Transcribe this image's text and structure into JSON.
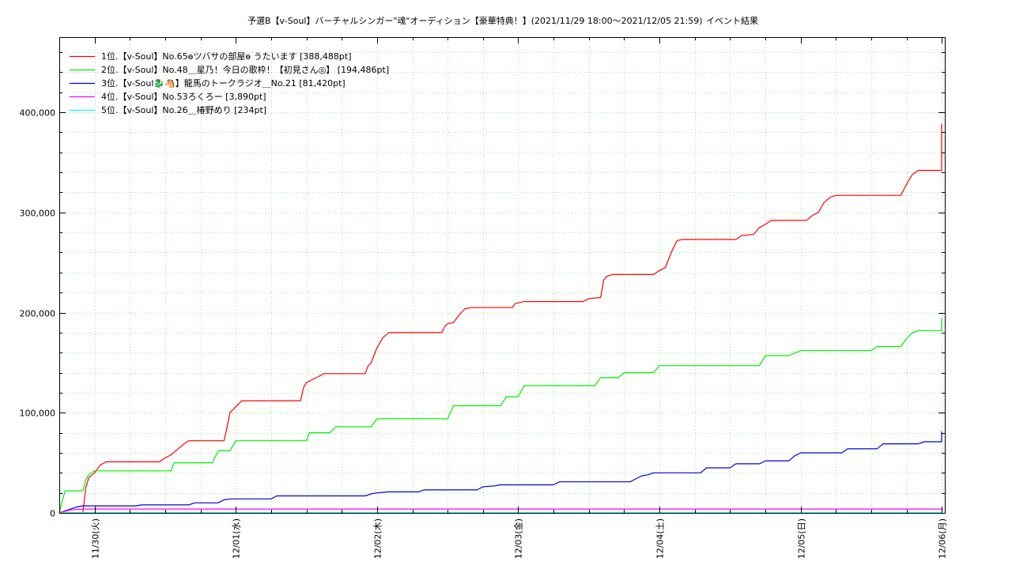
{
  "chart_data": {
    "type": "line",
    "title": "予選B【v-Soul】バーチャルシンガー\"魂\"オーディション【豪華特典！】(2021/11/29 18:00〜2021/12/05 21:59)",
    "subtitle": "イベント結果",
    "x_unit": "hours since 11/29 18:00",
    "xlim": [
      0,
      150.5
    ],
    "ylim": [
      0,
      475000
    ],
    "grid": true,
    "legend_position": "top-left",
    "y_ticks": [
      {
        "value": 0,
        "label": "0"
      },
      {
        "value": 100000,
        "label": "100,000"
      },
      {
        "value": 200000,
        "label": "200,000"
      },
      {
        "value": 300000,
        "label": "300,000"
      },
      {
        "value": 400000,
        "label": "400,000"
      }
    ],
    "x_ticks": [
      {
        "value": 6,
        "label": "11/30(火)"
      },
      {
        "value": 30,
        "label": "12/01(水)"
      },
      {
        "value": 54,
        "label": "12/02(木)"
      },
      {
        "value": 78,
        "label": "12/03(金)"
      },
      {
        "value": 102,
        "label": "12/04(土)"
      },
      {
        "value": 126,
        "label": "12/05(日)"
      },
      {
        "value": 150,
        "label": "12/06(月)"
      }
    ],
    "series": [
      {
        "name": "1位.【v-Soul】No.65ɵツバサの部屋ɵ うたいます [388,488pt]",
        "color": "#ff0000",
        "points": [
          [
            0,
            0
          ],
          [
            4,
            0
          ],
          [
            4.5,
            25000
          ],
          [
            5,
            35000
          ],
          [
            6,
            40000
          ],
          [
            7,
            48000
          ],
          [
            8,
            51000
          ],
          [
            13,
            51000
          ],
          [
            17,
            51000
          ],
          [
            18,
            55000
          ],
          [
            19,
            58000
          ],
          [
            20,
            63000
          ],
          [
            21,
            68000
          ],
          [
            22,
            72000
          ],
          [
            25,
            72000
          ],
          [
            28,
            72000
          ],
          [
            28.5,
            85000
          ],
          [
            29,
            100000
          ],
          [
            30,
            106000
          ],
          [
            31,
            112000
          ],
          [
            35,
            112000
          ],
          [
            41,
            112000
          ],
          [
            41.5,
            125000
          ],
          [
            42,
            130000
          ],
          [
            43,
            133000
          ],
          [
            44,
            136000
          ],
          [
            45,
            139000
          ],
          [
            50,
            139000
          ],
          [
            52,
            139000
          ],
          [
            52.5,
            147000
          ],
          [
            53,
            150000
          ],
          [
            54,
            165000
          ],
          [
            55,
            175000
          ],
          [
            56,
            180000
          ],
          [
            65,
            180000
          ],
          [
            65.5,
            186000
          ],
          [
            66,
            189000
          ],
          [
            67,
            190000
          ],
          [
            68,
            198000
          ],
          [
            69,
            204000
          ],
          [
            70,
            205000
          ],
          [
            77,
            205000
          ],
          [
            77.5,
            209000
          ],
          [
            79,
            211000
          ],
          [
            89,
            211000
          ],
          [
            90,
            214000
          ],
          [
            92,
            215000
          ],
          [
            92.5,
            232000
          ],
          [
            93,
            236000
          ],
          [
            94,
            238000
          ],
          [
            101,
            238000
          ],
          [
            102,
            242000
          ],
          [
            103,
            245000
          ],
          [
            104,
            260000
          ],
          [
            105,
            272000
          ],
          [
            106,
            273000
          ],
          [
            115,
            273000
          ],
          [
            116,
            277000
          ],
          [
            118,
            278000
          ],
          [
            119,
            285000
          ],
          [
            120,
            288000
          ],
          [
            121,
            292000
          ],
          [
            127,
            292000
          ],
          [
            128,
            297000
          ],
          [
            129,
            300000
          ],
          [
            130,
            310000
          ],
          [
            131,
            315000
          ],
          [
            132,
            317000
          ],
          [
            143,
            317000
          ],
          [
            144,
            328000
          ],
          [
            145,
            338000
          ],
          [
            146,
            342000
          ],
          [
            152,
            342000
          ],
          [
            153,
            350000
          ],
          [
            154,
            358000
          ],
          [
            155,
            362000
          ],
          [
            156,
            385000
          ],
          [
            157,
            388488
          ],
          [
            160,
            388488
          ]
        ]
      },
      {
        "name": "2位.【v-Soul】No.48＿星乃！今日の歌枠！【初見さん◎】 [194,486pt]",
        "color": "#00ee00",
        "points": [
          [
            0,
            0
          ],
          [
            0.5,
            12000
          ],
          [
            1,
            22000
          ],
          [
            4,
            22000
          ],
          [
            4.5,
            33000
          ],
          [
            5,
            38000
          ],
          [
            6,
            42000
          ],
          [
            13,
            42000
          ],
          [
            19,
            42000
          ],
          [
            19.5,
            50000
          ],
          [
            26,
            50000
          ],
          [
            27,
            62000
          ],
          [
            29,
            62000
          ],
          [
            30,
            72000
          ],
          [
            36,
            72000
          ],
          [
            42,
            72000
          ],
          [
            42.5,
            80000
          ],
          [
            46,
            80000
          ],
          [
            47,
            86000
          ],
          [
            53,
            86000
          ],
          [
            54,
            94000
          ],
          [
            66,
            94000
          ],
          [
            67,
            107000
          ],
          [
            75,
            107000
          ],
          [
            76,
            116000
          ],
          [
            78,
            116000
          ],
          [
            79,
            127000
          ],
          [
            91,
            127000
          ],
          [
            92,
            135000
          ],
          [
            95,
            135000
          ],
          [
            96,
            140000
          ],
          [
            101,
            140000
          ],
          [
            102,
            147000
          ],
          [
            114,
            147000
          ],
          [
            119,
            147000
          ],
          [
            120,
            157000
          ],
          [
            124,
            157000
          ],
          [
            126,
            162000
          ],
          [
            138,
            162000
          ],
          [
            139,
            166000
          ],
          [
            143,
            166000
          ],
          [
            144,
            174000
          ],
          [
            145,
            180000
          ],
          [
            146,
            182000
          ],
          [
            152,
            182000
          ],
          [
            153,
            190000
          ],
          [
            154,
            194486
          ],
          [
            160,
            194486
          ]
        ]
      },
      {
        "name": "3位.【v-Soul🐉🐴】龍馬のトークラジオ＿No.21 [81,420pt]",
        "color": "#0000dd",
        "points": [
          [
            0,
            0
          ],
          [
            1,
            2000
          ],
          [
            2,
            4000
          ],
          [
            3,
            6000
          ],
          [
            4,
            7000
          ],
          [
            13,
            7000
          ],
          [
            14,
            8000
          ],
          [
            22,
            8000
          ],
          [
            23,
            10000
          ],
          [
            27,
            10000
          ],
          [
            28,
            13000
          ],
          [
            29,
            14000
          ],
          [
            36,
            14000
          ],
          [
            37,
            17000
          ],
          [
            44,
            17000
          ],
          [
            52,
            17000
          ],
          [
            53,
            19000
          ],
          [
            54,
            20000
          ],
          [
            56,
            21000
          ],
          [
            61,
            21000
          ],
          [
            62,
            23000
          ],
          [
            67,
            23000
          ],
          [
            71,
            23000
          ],
          [
            72,
            26000
          ],
          [
            74,
            27000
          ],
          [
            75,
            28000
          ],
          [
            84,
            28000
          ],
          [
            85,
            31000
          ],
          [
            91,
            31000
          ],
          [
            97,
            31000
          ],
          [
            98,
            34000
          ],
          [
            99,
            37000
          ],
          [
            100,
            38000
          ],
          [
            101,
            40000
          ],
          [
            109,
            40000
          ],
          [
            110,
            45000
          ],
          [
            114,
            45000
          ],
          [
            115,
            49000
          ],
          [
            119,
            49000
          ],
          [
            120,
            52000
          ],
          [
            124,
            52000
          ],
          [
            125,
            57000
          ],
          [
            126,
            60000
          ],
          [
            133,
            60000
          ],
          [
            134,
            64000
          ],
          [
            139,
            64000
          ],
          [
            140,
            69000
          ],
          [
            146,
            69000
          ],
          [
            147,
            71000
          ],
          [
            153,
            71000
          ],
          [
            154,
            76000
          ],
          [
            155,
            81420
          ],
          [
            160,
            81420
          ]
        ]
      },
      {
        "name": "4位.【v-Soul】No.53ろくろー [3,890pt]",
        "color": "#ff00ff",
        "points": [
          [
            0,
            0
          ],
          [
            1,
            1500
          ],
          [
            2,
            3000
          ],
          [
            3,
            3500
          ],
          [
            4,
            3890
          ],
          [
            160,
            3890
          ]
        ]
      },
      {
        "name": "5位.【v-Soul】No.26＿椿野めり [234pt]",
        "color": "#00ffff",
        "points": [
          [
            0,
            0
          ],
          [
            1,
            234
          ],
          [
            160,
            234
          ]
        ]
      }
    ]
  }
}
